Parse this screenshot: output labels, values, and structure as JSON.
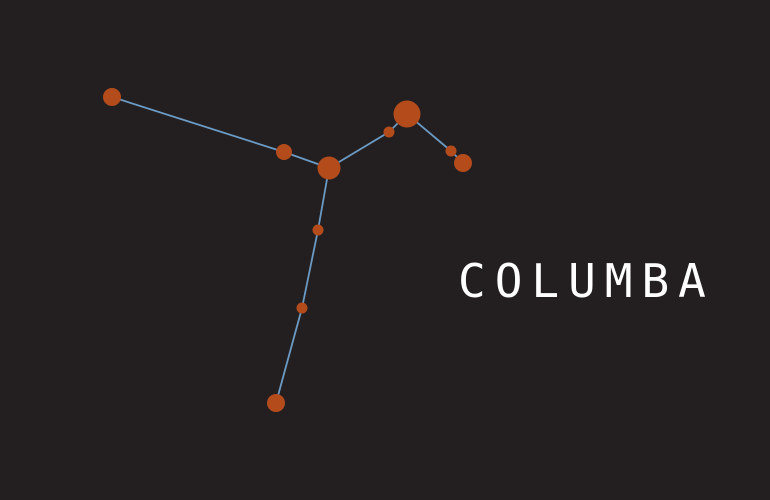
{
  "title": "COLUMBA",
  "colors": {
    "background": "#231f20",
    "star": "#b44b1b",
    "line": "#6b9ac4",
    "title": "#ffffff"
  },
  "stars": [
    {
      "id": "star-far-left",
      "size": "medium"
    },
    {
      "id": "star-left-mid",
      "size": "small"
    },
    {
      "id": "star-center",
      "size": "large"
    },
    {
      "id": "star-top-small",
      "size": "tiny"
    },
    {
      "id": "star-top",
      "size": "xlarge"
    },
    {
      "id": "star-right-small",
      "size": "tiny"
    },
    {
      "id": "star-right",
      "size": "medium"
    },
    {
      "id": "star-lower-1",
      "size": "tiny"
    },
    {
      "id": "star-lower-2",
      "size": "tiny"
    },
    {
      "id": "star-bottom",
      "size": "medium"
    }
  ],
  "connections": [
    [
      "star-far-left",
      "star-left-mid"
    ],
    [
      "star-left-mid",
      "star-center"
    ],
    [
      "star-center",
      "star-top-small"
    ],
    [
      "star-top-small",
      "star-top"
    ],
    [
      "star-top",
      "star-right-small"
    ],
    [
      "star-right-small",
      "star-right"
    ],
    [
      "star-center",
      "star-lower-1"
    ],
    [
      "star-lower-1",
      "star-lower-2"
    ],
    [
      "star-lower-2",
      "star-bottom"
    ]
  ]
}
